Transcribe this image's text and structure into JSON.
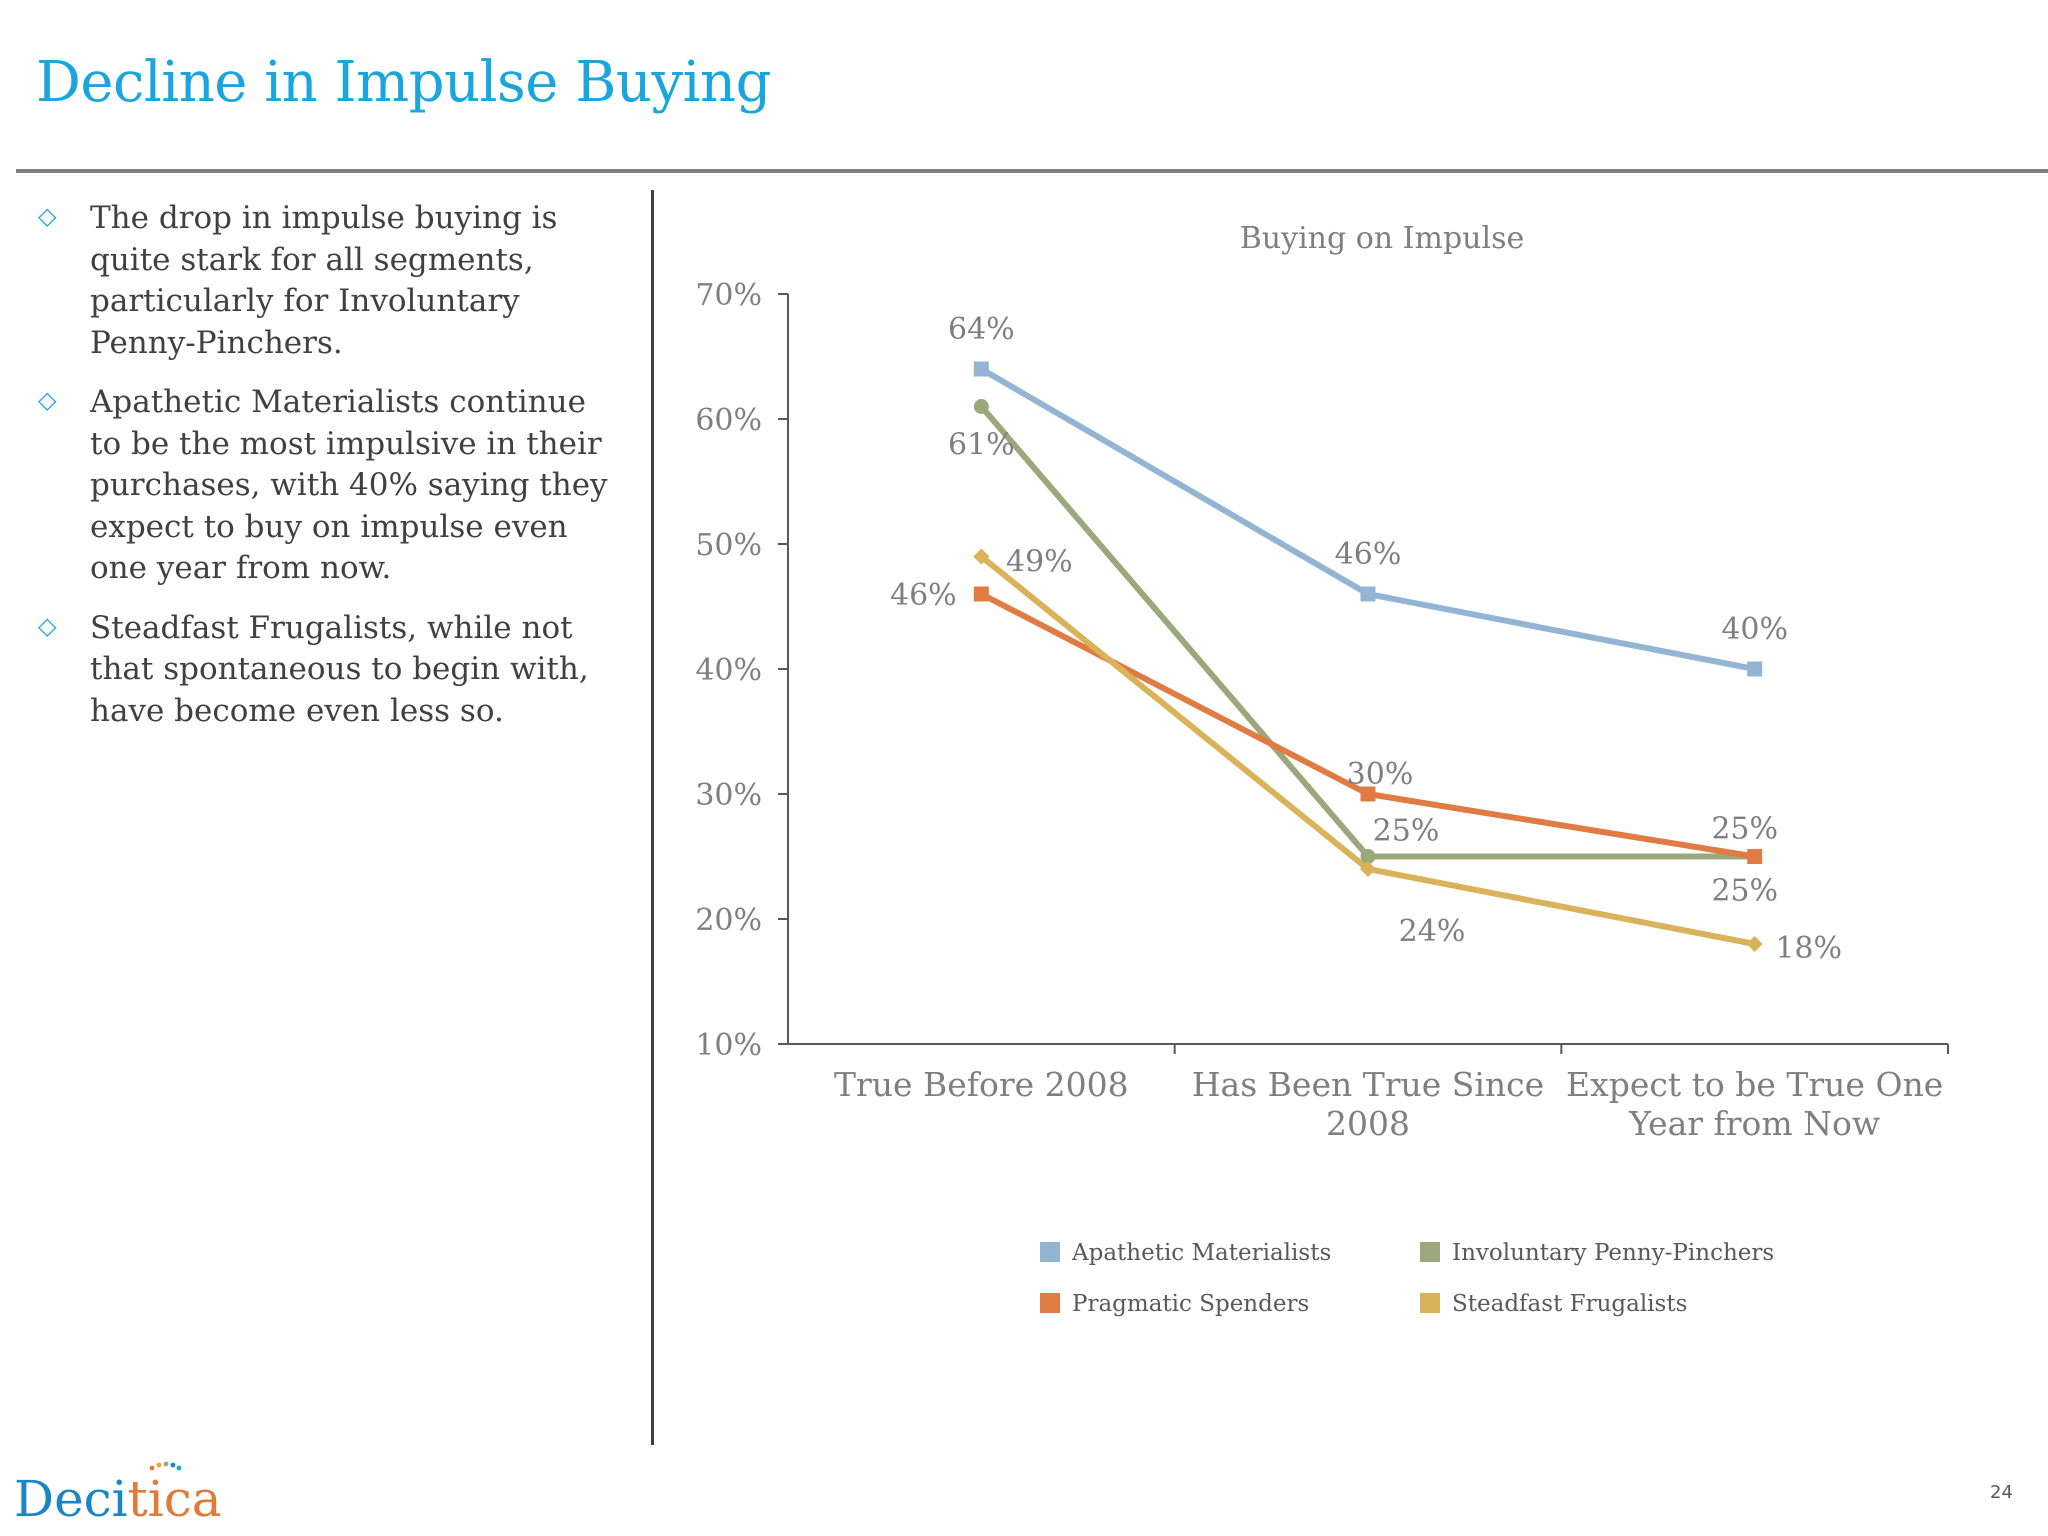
{
  "slide": {
    "title": "Decline in Impulse Buying",
    "page_number": "24",
    "logo_text": "Decitica"
  },
  "bullets": [
    {
      "marker": "◇",
      "text": "The drop in impulse buying is quite stark for all segments, particularly for Involuntary Penny-Pinchers."
    },
    {
      "marker": "◇",
      "text": "Apathetic Materialists continue to be the most impulsive in their purchases, with 40% saying they expect to buy on impulse even one year from now."
    },
    {
      "marker": "◇",
      "text": "Steadfast Frugalists, while not that spontaneous to begin with, have become even less so."
    }
  ],
  "colors": {
    "title": "#1aa6dc",
    "bullet_marker": "#1aa6dc",
    "body_text": "#404040",
    "axis_text": "#7f7f7f",
    "logo_blue": "#1a86c4",
    "logo_orange": "#e07b39"
  },
  "chart_data": {
    "type": "line",
    "title": "Buying on Impulse",
    "xlabel": "",
    "ylabel": "",
    "categories": [
      [
        "True Before 2008"
      ],
      [
        "Has Been True Since",
        "2008"
      ],
      [
        "Expect to be True One",
        "Year from Now"
      ]
    ],
    "ylim": [
      10,
      70
    ],
    "yticks": [
      "10%",
      "20%",
      "30%",
      "40%",
      "50%",
      "60%",
      "70%"
    ],
    "grid": false,
    "legend_position": "bottom",
    "series": [
      {
        "name": "Apathetic Materialists",
        "color": "#94b4d3",
        "marker": "square",
        "values": [
          64,
          46,
          40
        ],
        "labels": [
          "64%",
          "46%",
          "40%"
        ]
      },
      {
        "name": "Involuntary Penny-Pinchers",
        "color": "#9aa87c",
        "marker": "circle",
        "values": [
          61,
          25,
          25
        ],
        "labels": [
          "61%",
          "25%",
          "25%"
        ]
      },
      {
        "name": "Pragmatic Spenders",
        "color": "#e07b44",
        "marker": "square",
        "values": [
          46,
          30,
          25
        ],
        "labels": [
          "46%",
          "30%",
          "25%"
        ]
      },
      {
        "name": "Steadfast Frugalists",
        "color": "#d9b25a",
        "marker": "diamond",
        "values": [
          49,
          24,
          18
        ],
        "labels": [
          "49%",
          "24%",
          "18%"
        ]
      }
    ]
  }
}
